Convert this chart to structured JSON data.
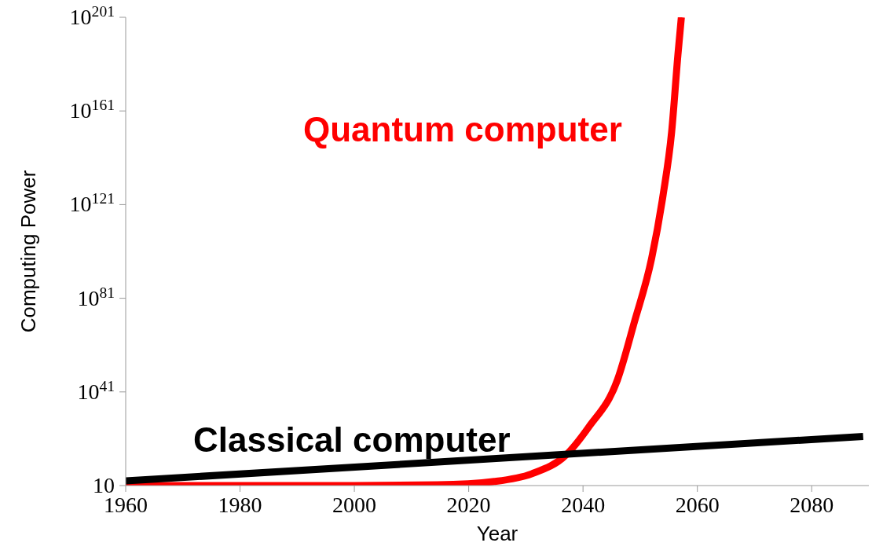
{
  "chart_data": {
    "type": "line",
    "xlabel": "Year",
    "ylabel": "Computing Power",
    "log": "y",
    "grid": false,
    "legend": false,
    "marker": "none",
    "line_style": "solid",
    "xlim": [
      1960,
      2090
    ],
    "xticks": [
      1960,
      1980,
      2000,
      2020,
      2040,
      2060,
      2080
    ],
    "ylim": [
      10,
      1e+201
    ],
    "yticks": [
      10,
      {
        "value": 1e+41,
        "label": "10$^{41}$"
      },
      {
        "value": 1e+81,
        "label": "10$^{81}$"
      },
      {
        "value": 1e+121,
        "label": "10$^{121}$"
      },
      {
        "value": 1e+161,
        "label": "10$^{161}$"
      },
      {
        "value": 1e+201,
        "label": "10$^{201}$"
      }
    ],
    "series": [
      {
        "name": "Quantum computer",
        "color": "#ff0000",
        "x": [
          1960,
          2000,
          2014.5,
          2024.5,
          2031,
          2037,
          2041,
          2046,
          2049,
          2052,
          2054,
          2055.5,
          2056.6,
          2057.2
        ],
        "values": [
          10,
          10,
          20,
          600,
          1000000.0,
          100000000000000.0,
          1e+26,
          1e+46,
          1e+71,
          1e+98,
          1e+125,
          1e+152,
          1e+185,
          1e+201
        ]
      },
      {
        "name": "Classical computer",
        "color": "#000000",
        "x": [
          1960,
          2089
        ],
        "values": [
          1000.0,
          1e+22
        ]
      }
    ]
  }
}
